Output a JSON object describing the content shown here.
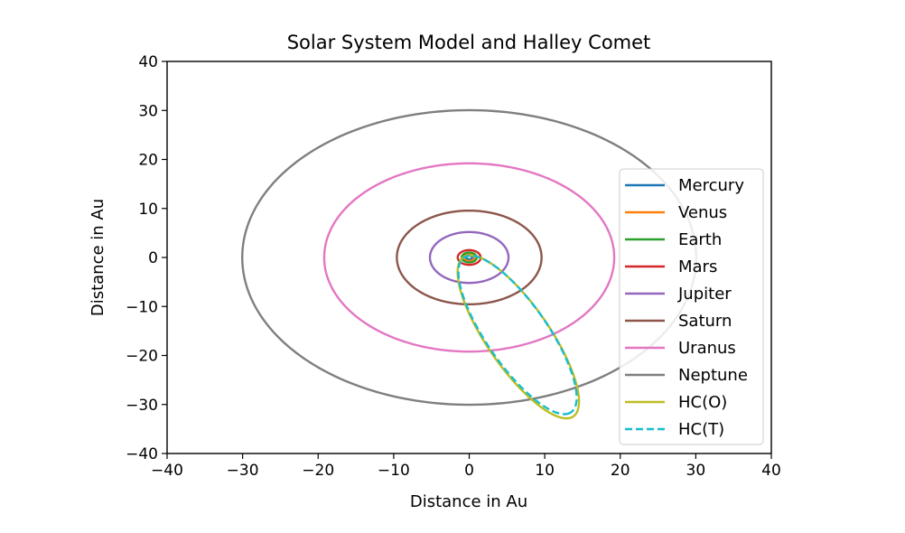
{
  "chart_data": {
    "type": "line",
    "title": "Solar System Model and Halley Comet",
    "xlabel": "Distance in Au",
    "ylabel": "Distance in Au",
    "xlim": [
      -40,
      40
    ],
    "ylim": [
      -40,
      40
    ],
    "xticks": [
      -40,
      -30,
      -20,
      -10,
      0,
      10,
      20,
      30,
      40
    ],
    "yticks": [
      -40,
      -30,
      -20,
      -10,
      0,
      10,
      20,
      30,
      40
    ],
    "xtick_labels": [
      "−40",
      "−30",
      "−20",
      "−10",
      "0",
      "10",
      "20",
      "30",
      "40"
    ],
    "ytick_labels": [
      "−40",
      "−30",
      "−20",
      "−10",
      "0",
      "10",
      "20",
      "30",
      "40"
    ],
    "grid": false,
    "legend_position": "center-right",
    "series": [
      {
        "name": "Mercury",
        "color": "#1f77b4",
        "style": "solid",
        "orbit": {
          "cx": 0,
          "cy": 0,
          "a": 0.39,
          "b": 0.38,
          "rotation_deg": 0
        }
      },
      {
        "name": "Venus",
        "color": "#ff7f0e",
        "style": "solid",
        "orbit": {
          "cx": 0,
          "cy": 0,
          "a": 0.72,
          "b": 0.72,
          "rotation_deg": 0
        }
      },
      {
        "name": "Earth",
        "color": "#2ca02c",
        "style": "solid",
        "orbit": {
          "cx": 0,
          "cy": 0,
          "a": 1.0,
          "b": 1.0,
          "rotation_deg": 0
        }
      },
      {
        "name": "Mars",
        "color": "#d62728",
        "style": "solid",
        "orbit": {
          "cx": 0,
          "cy": 0,
          "a": 1.52,
          "b": 1.5,
          "rotation_deg": 0
        }
      },
      {
        "name": "Jupiter",
        "color": "#9467bd",
        "style": "solid",
        "orbit": {
          "cx": 0,
          "cy": 0,
          "a": 5.2,
          "b": 5.19,
          "rotation_deg": 0
        }
      },
      {
        "name": "Saturn",
        "color": "#8c564b",
        "style": "solid",
        "orbit": {
          "cx": 0,
          "cy": 0,
          "a": 9.58,
          "b": 9.56,
          "rotation_deg": 0
        }
      },
      {
        "name": "Uranus",
        "color": "#e377c2",
        "style": "solid",
        "orbit": {
          "cx": 0,
          "cy": 0,
          "a": 19.2,
          "b": 19.2,
          "rotation_deg": 0
        }
      },
      {
        "name": "Neptune",
        "color": "#7f7f7f",
        "style": "solid",
        "orbit": {
          "cx": 0,
          "cy": 0,
          "a": 30.05,
          "b": 30.05,
          "rotation_deg": 0
        }
      },
      {
        "name": "HC(O)",
        "color": "#bcbd22",
        "style": "solid",
        "orbit": {
          "cx": 6.5,
          "cy": -16.2,
          "a": 17.9,
          "b": 4.55,
          "rotation_deg": -67.5
        }
      },
      {
        "name": "HC(T)",
        "color": "#17becf",
        "style": "dashed",
        "orbit": {
          "cx": 6.4,
          "cy": -15.8,
          "a": 17.4,
          "b": 4.45,
          "rotation_deg": -67.5
        }
      }
    ]
  }
}
